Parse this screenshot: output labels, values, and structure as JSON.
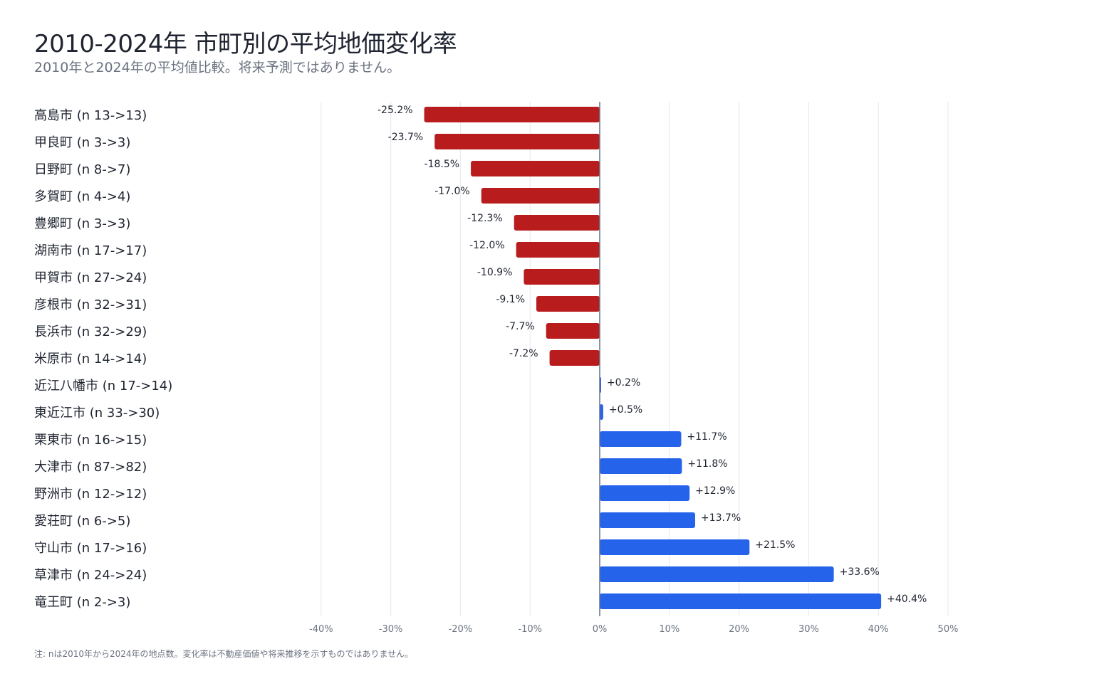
{
  "title": "2010-2024年 市町別の平均地価変化率",
  "subtitle": "2010年と2024年の平均値比較。将来予測ではありません。",
  "footnote": "注: nは2010年から2024年の地点数。変化率は不動産価値や将来推移を示すものではありません。",
  "colors": {
    "negative": "#b91c1c",
    "positive": "#2563eb",
    "grid": "#e5e7eb",
    "zero_line": "#64748b"
  },
  "chart_data": {
    "type": "bar",
    "orientation": "horizontal",
    "categories": [
      "高島市 (n 13->13)",
      "甲良町 (n 3->3)",
      "日野町 (n 8->7)",
      "多賀町 (n 4->4)",
      "豊郷町 (n 3->3)",
      "湖南市 (n 17->17)",
      "甲賀市 (n 27->24)",
      "彦根市 (n 32->31)",
      "長浜市 (n 32->29)",
      "米原市 (n 14->14)",
      "近江八幡市 (n 17->14)",
      "東近江市 (n 33->30)",
      "栗東市 (n 16->15)",
      "大津市 (n 87->82)",
      "野洲市 (n 12->12)",
      "愛荘町 (n 6->5)",
      "守山市 (n 17->16)",
      "草津市 (n 24->24)",
      "竜王町 (n 2->3)"
    ],
    "values": [
      -25.2,
      -23.7,
      -18.5,
      -17.0,
      -12.3,
      -12.0,
      -10.9,
      -9.1,
      -7.7,
      -7.2,
      0.2,
      0.5,
      11.7,
      11.8,
      12.9,
      13.7,
      21.5,
      33.6,
      40.4
    ],
    "value_labels": [
      "-25.2%",
      "-23.7%",
      "-18.5%",
      "-17.0%",
      "-12.3%",
      "-12.0%",
      "-10.9%",
      "-9.1%",
      "-7.7%",
      "-7.2%",
      "+0.2%",
      "+0.5%",
      "+11.7%",
      "+11.8%",
      "+12.9%",
      "+13.7%",
      "+21.5%",
      "+33.6%",
      "+40.4%"
    ],
    "x_ticks": [
      -40,
      -30,
      -20,
      -10,
      0,
      10,
      20,
      30,
      40,
      50
    ],
    "x_tick_labels": [
      "-40%",
      "-30%",
      "-20%",
      "-10%",
      "0%",
      "10%",
      "20%",
      "30%",
      "40%",
      "50%"
    ],
    "xlim": [
      -40,
      50
    ],
    "grid": true,
    "xlabel": "",
    "ylabel": ""
  }
}
